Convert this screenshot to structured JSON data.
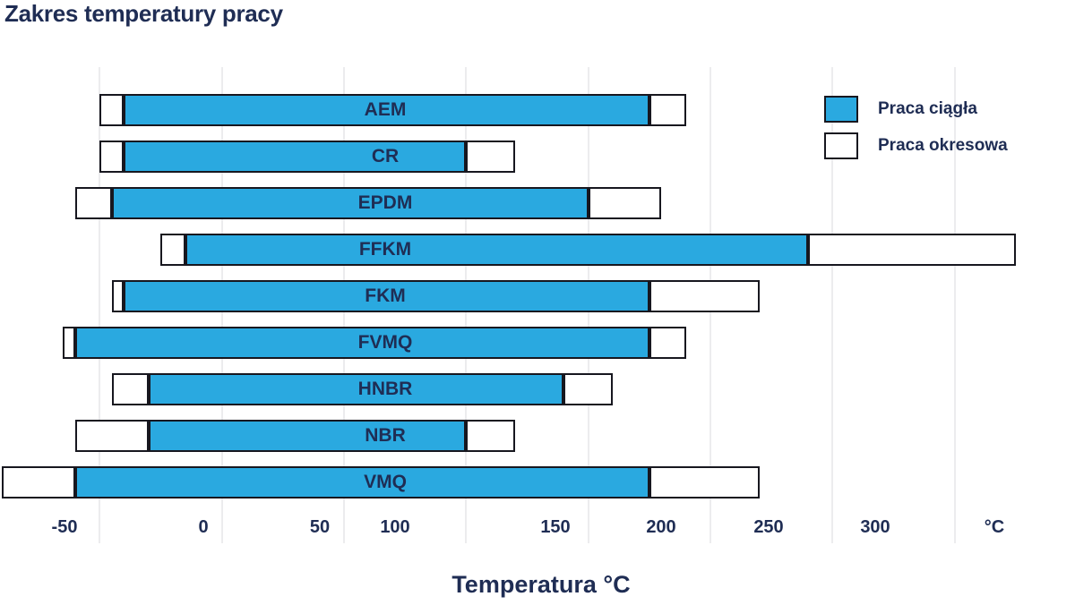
{
  "title": "Zakres temperatury pracy",
  "axis_title": "Temperatura °C",
  "unit_label": "°C",
  "colors": {
    "continuous_fill": "#2aa9e0",
    "periodic_fill": "#ffffff",
    "bar_border": "#17171f",
    "text": "#1f2d54",
    "gridline": "#ececee",
    "background": "#ffffff"
  },
  "legend": {
    "items": [
      {
        "key": "continuous",
        "label": "Praca ciągła"
      },
      {
        "key": "periodic",
        "label": "Praca okresowa"
      }
    ]
  },
  "chart_data": {
    "type": "bar",
    "orientation": "horizontal-range",
    "title": "Zakres temperatury pracy",
    "xlabel": "Temperatura °C",
    "x_unit": "°C",
    "x_ticks": [
      -50,
      0,
      50,
      100,
      150,
      200,
      250,
      300
    ],
    "xlim": [
      -91,
      348
    ],
    "grid": true,
    "legend_position": "top-right",
    "series_semantics": {
      "continuous": "Praca ciągła — blue segment from cont_min to cont_max",
      "periodic": "Praca okresowa — white segments from short_min to cont_min and cont_max to short_max"
    },
    "materials": [
      {
        "name": "AEM",
        "short_min": -50,
        "cont_min": -40,
        "cont_max": 175,
        "short_max": 190
      },
      {
        "name": "CR",
        "short_min": -50,
        "cont_min": -40,
        "cont_max": 100,
        "short_max": 120
      },
      {
        "name": "EPDM",
        "short_min": -60,
        "cont_min": -45,
        "cont_max": 150,
        "short_max": 180
      },
      {
        "name": "FFKM",
        "short_min": -25,
        "cont_min": -15,
        "cont_max": 240,
        "short_max": 325
      },
      {
        "name": "FKM",
        "short_min": -45,
        "cont_min": -40,
        "cont_max": 175,
        "short_max": 220
      },
      {
        "name": "FVMQ",
        "short_min": -65,
        "cont_min": -60,
        "cont_max": 175,
        "short_max": 190
      },
      {
        "name": "HNBR",
        "short_min": -45,
        "cont_min": -30,
        "cont_max": 140,
        "short_max": 160
      },
      {
        "name": "NBR",
        "short_min": -60,
        "cont_min": -30,
        "cont_max": 100,
        "short_max": 120
      },
      {
        "name": "VMQ",
        "short_min": -90,
        "cont_min": -60,
        "cont_max": 175,
        "short_max": 220
      }
    ]
  }
}
